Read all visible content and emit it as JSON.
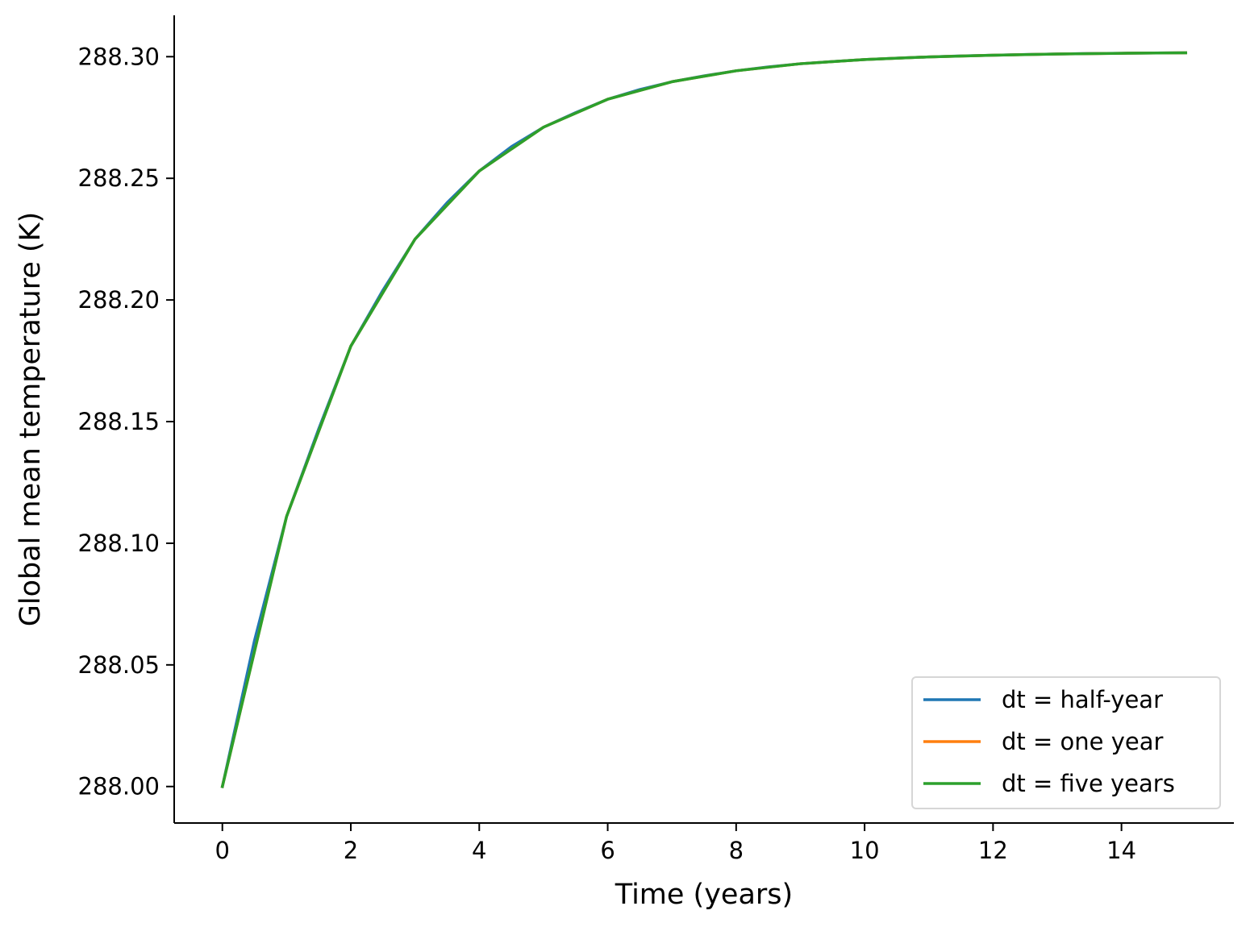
{
  "chart_data": {
    "type": "line",
    "xlabel": "Time (years)",
    "ylabel": "Global mean temperature (K)",
    "xlim": [
      -0.75,
      15.75
    ],
    "ylim": [
      287.985,
      288.317
    ],
    "xticks": [
      0,
      2,
      4,
      6,
      8,
      10,
      12,
      14
    ],
    "xtick_labels": [
      "0",
      "2",
      "4",
      "6",
      "8",
      "10",
      "12",
      "14"
    ],
    "yticks": [
      288.0,
      288.05,
      288.1,
      288.15,
      288.2,
      288.25,
      288.3
    ],
    "ytick_labels": [
      "288.00",
      "288.05",
      "288.10",
      "288.15",
      "288.20",
      "288.25",
      "288.30"
    ],
    "grid": false,
    "legend_position": "lower-right",
    "series": [
      {
        "name": "dt = half-year",
        "color": "#1f77b4",
        "x": [
          0,
          0.5,
          1,
          1.5,
          2,
          2.5,
          3,
          3.5,
          4,
          4.5,
          5,
          5.5,
          6,
          6.5,
          7,
          7.5,
          8,
          8.5,
          9,
          9.5,
          10,
          10.5,
          11,
          11.5,
          12,
          12.5,
          13,
          13.5,
          14,
          14.5,
          15
        ],
        "y": [
          288.0,
          288.06,
          288.111,
          288.147,
          288.181,
          288.204,
          288.225,
          288.24,
          288.253,
          288.263,
          288.271,
          288.277,
          288.2825,
          288.2865,
          288.2897,
          288.2921,
          288.2942,
          288.2958,
          288.2971,
          288.298,
          288.2988,
          288.2994,
          288.2999,
          288.3003,
          288.3006,
          288.3009,
          288.3011,
          288.3013,
          288.3014,
          288.3015,
          288.3016
        ]
      },
      {
        "name": "dt = one year",
        "color": "#ff7f0e",
        "x": [
          0,
          1,
          2,
          3,
          4,
          5,
          6,
          7,
          8,
          9,
          10,
          11,
          12,
          13,
          14,
          15
        ],
        "y": [
          288.0,
          288.111,
          288.181,
          288.225,
          288.253,
          288.271,
          288.2825,
          288.2897,
          288.2942,
          288.2971,
          288.2988,
          288.2999,
          288.3006,
          288.3011,
          288.3014,
          288.3016
        ]
      },
      {
        "name": "dt = five years",
        "color": "#2ca02c",
        "x": [
          0,
          1,
          2,
          3,
          4,
          5,
          6,
          7,
          8,
          9,
          10,
          11,
          12,
          13,
          14,
          15
        ],
        "y": [
          288.0,
          288.111,
          288.181,
          288.225,
          288.253,
          288.271,
          288.2825,
          288.2897,
          288.2942,
          288.2971,
          288.2988,
          288.2999,
          288.3006,
          288.3011,
          288.3014,
          288.3016
        ]
      }
    ]
  }
}
